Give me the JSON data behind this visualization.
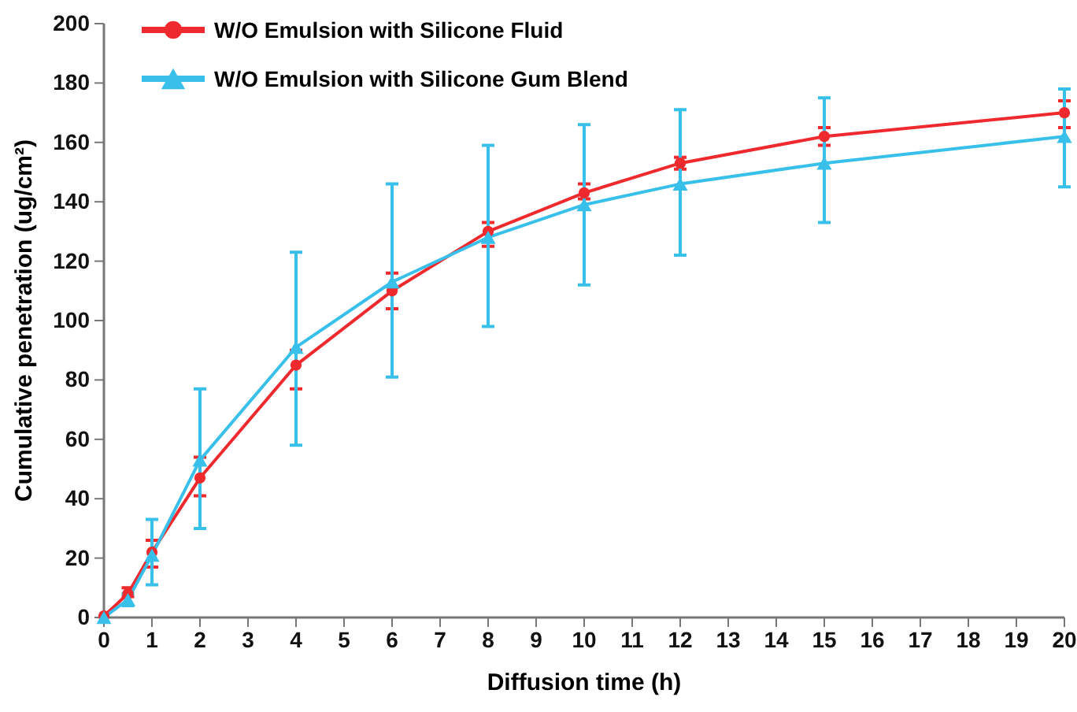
{
  "chart_data": {
    "type": "line",
    "xlabel": "Diffusion time (h)",
    "ylabel": "Cumulative penetration (ug/cm²)",
    "xlim": [
      0,
      20
    ],
    "xticks": [
      0,
      1,
      2,
      3,
      4,
      5,
      6,
      7,
      8,
      9,
      10,
      11,
      12,
      13,
      14,
      15,
      16,
      17,
      18,
      19,
      20
    ],
    "ylim": [
      0,
      200
    ],
    "yticks": [
      0,
      20,
      40,
      60,
      80,
      100,
      120,
      140,
      160,
      180,
      200
    ],
    "grid": false,
    "legend": "top left",
    "marker": "circle",
    "line_style": "solid",
    "series": [
      {
        "name": "W/O Emulsion with Silicone Fluid",
        "color": "#ee2a2e",
        "x": [
          0,
          0.5,
          1,
          2,
          4,
          6,
          8,
          10,
          12,
          15,
          20
        ],
        "values": [
          0.5,
          8,
          22,
          47,
          85,
          110,
          130,
          143,
          153,
          162,
          170
        ],
        "errors": [
          null,
          [
            7,
            10
          ],
          [
            17,
            26
          ],
          [
            41,
            54
          ],
          [
            77,
            90
          ],
          [
            104,
            116
          ],
          [
            125,
            133
          ],
          [
            141,
            146
          ],
          [
            151,
            155
          ],
          [
            159,
            165
          ],
          [
            165,
            174
          ]
        ]
      },
      {
        "name": "W/O Emulsion with Silicone Gum Blend",
        "color": "#39c0ea",
        "marker": "triangle",
        "x": [
          0,
          0.5,
          1,
          2,
          4,
          6,
          8,
          10,
          12,
          15,
          20
        ],
        "values": [
          0,
          6,
          21,
          53,
          91,
          113,
          128,
          139,
          146,
          153,
          162
        ],
        "errors": [
          null,
          [
            4,
            8
          ],
          [
            11,
            33
          ],
          [
            30,
            77
          ],
          [
            58,
            123
          ],
          [
            81,
            146
          ],
          [
            98,
            159
          ],
          [
            112,
            166
          ],
          [
            122,
            171
          ],
          [
            133,
            175
          ],
          [
            145,
            178
          ]
        ]
      }
    ]
  }
}
